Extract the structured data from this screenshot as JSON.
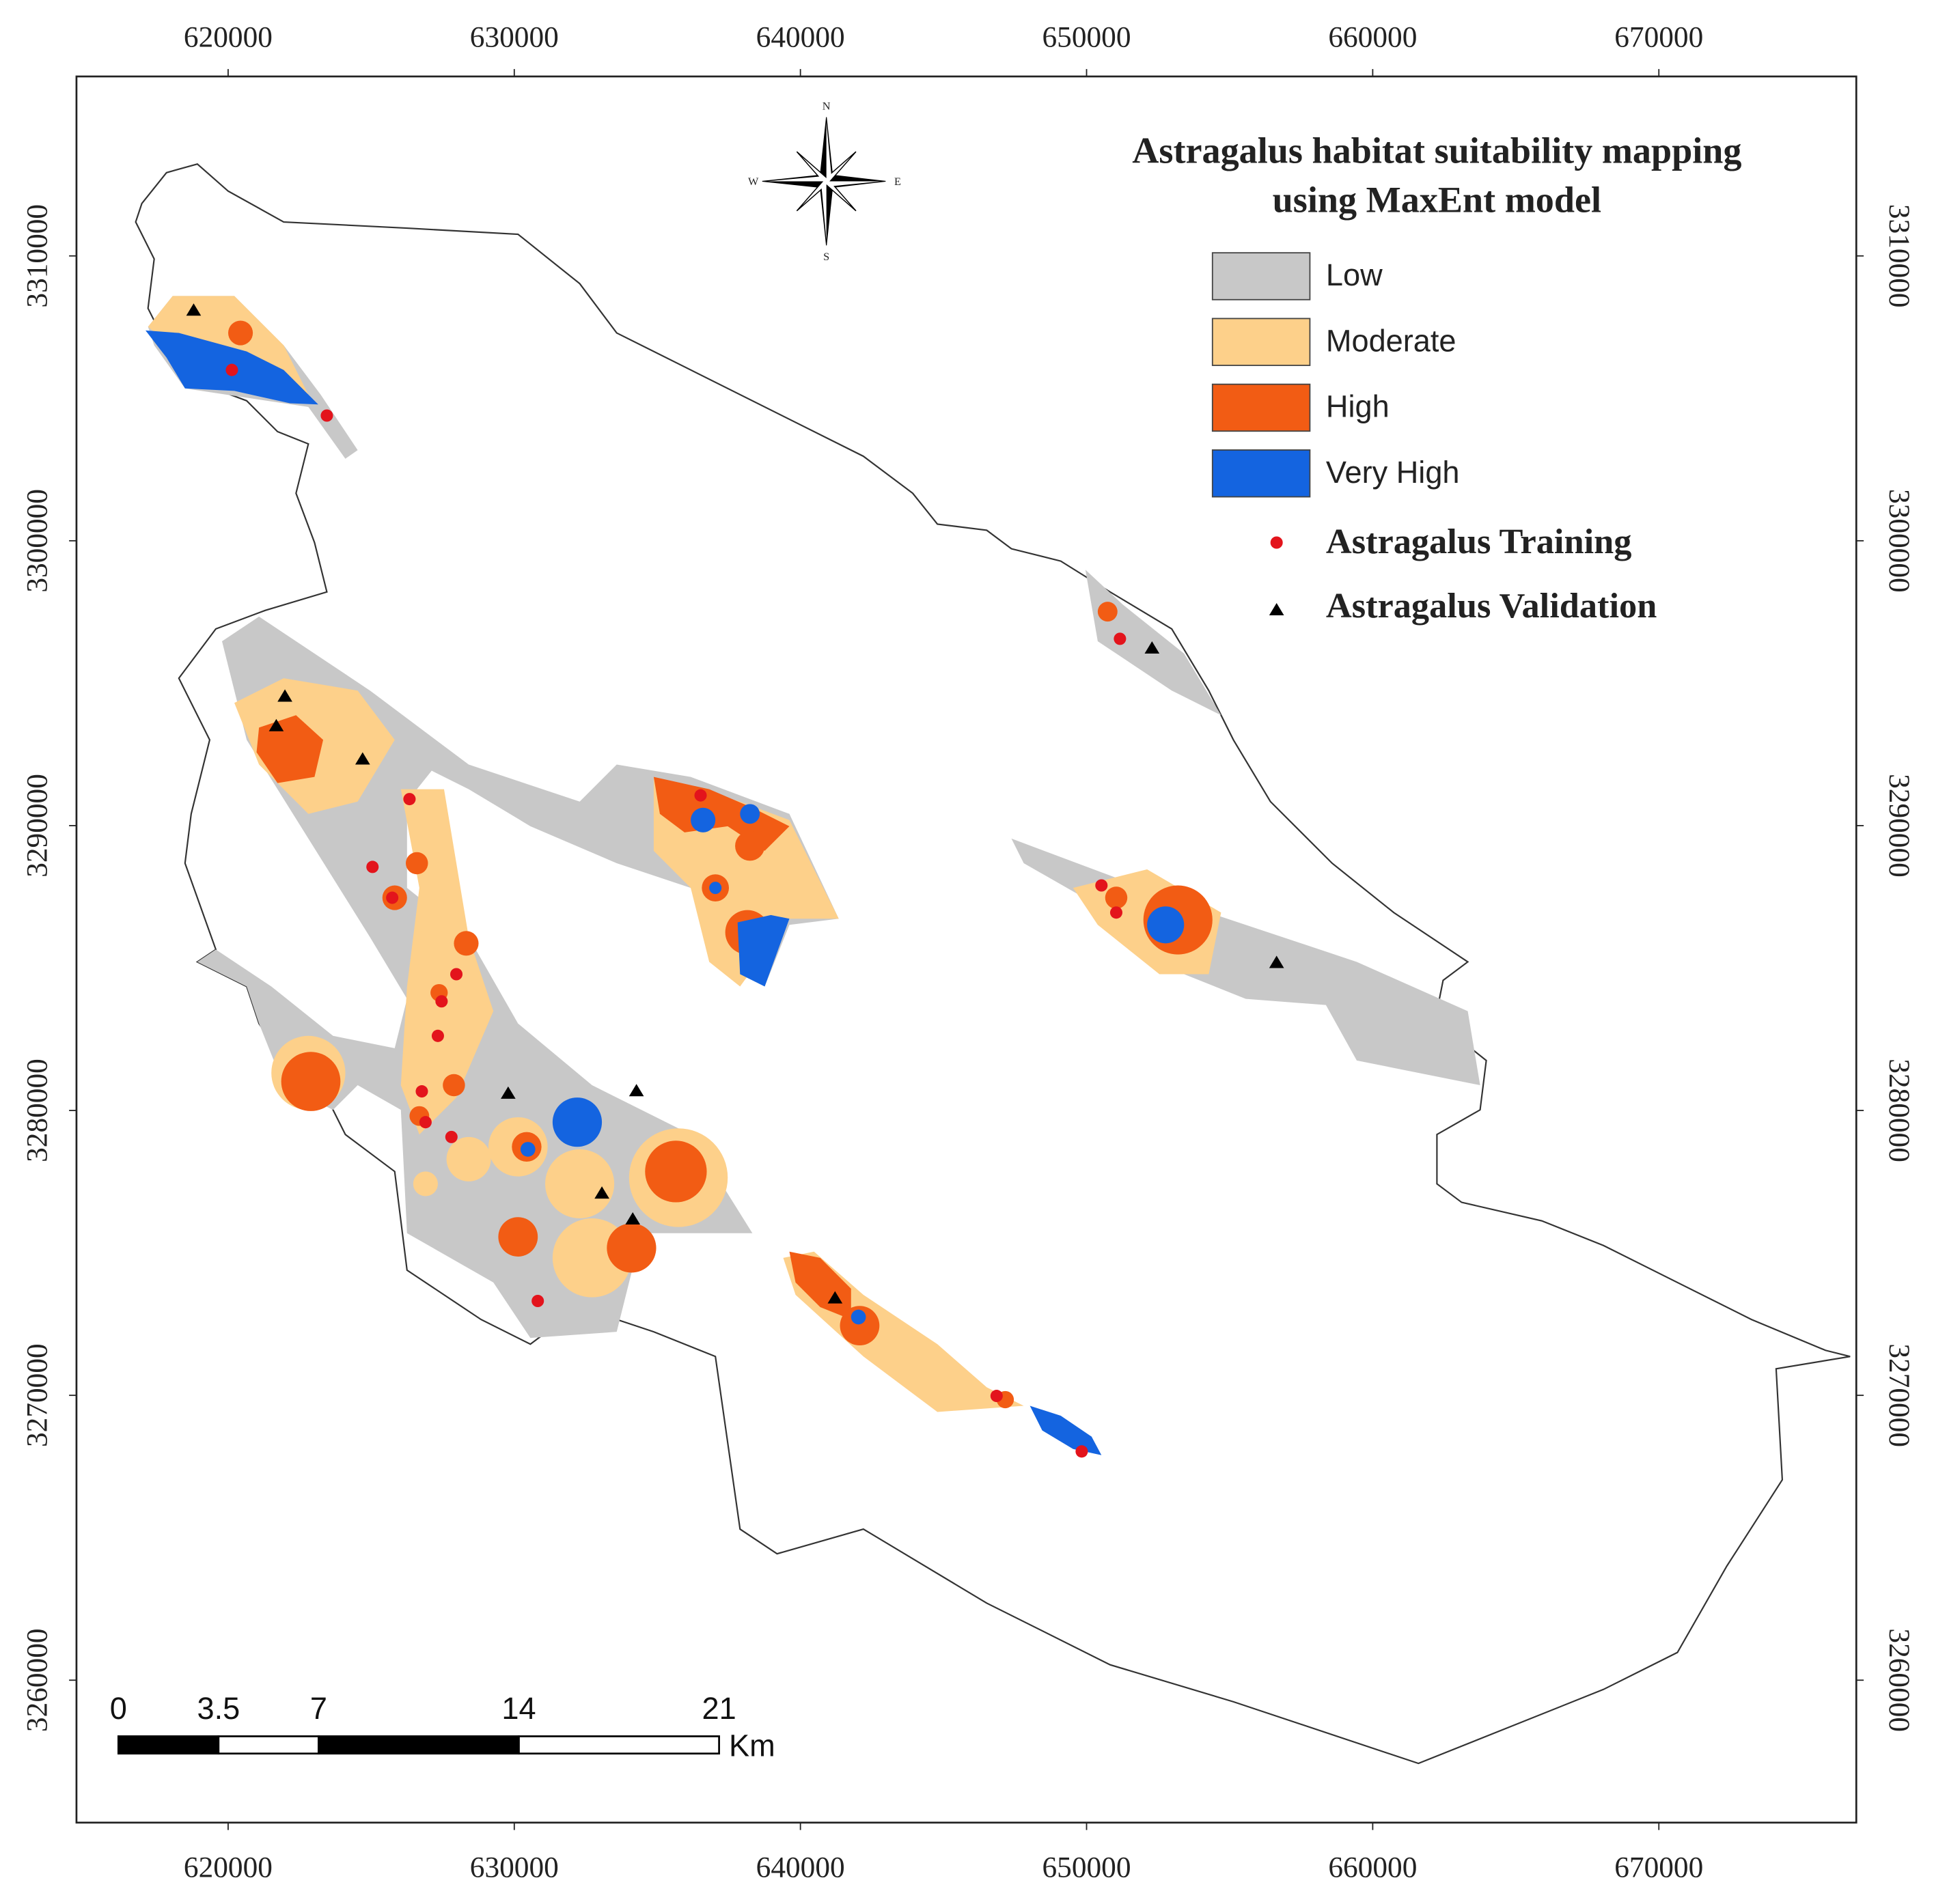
{
  "map": {
    "title": [
      "Astragalus habitat suitability mapping",
      "using MaxEnt model"
    ],
    "legend": [
      {
        "label": "Low",
        "color": "#c8c8c8"
      },
      {
        "label": "Moderate",
        "color": "#fdd08a"
      },
      {
        "label": "High",
        "color": "#f25c14"
      },
      {
        "label": "Very High",
        "color": "#1464e0"
      }
    ],
    "points": [
      {
        "label": "Astragalus Training",
        "color": "#e3141c"
      },
      {
        "label": "Astragalus Validation",
        "color": "#000000"
      }
    ],
    "xlim": [
      614700,
      676900
    ],
    "ylim": [
      3255000,
      3316300
    ],
    "xticks": [
      620000,
      630000,
      640000,
      650000,
      660000,
      670000
    ],
    "yticks": [
      3260000,
      3270000,
      3280000,
      3290000,
      3300000,
      3310000
    ],
    "compass": {
      "n": "N",
      "s": "S",
      "e": "E",
      "w": "W"
    },
    "scale_bar": {
      "ticks": [
        0,
        3.5,
        7,
        14,
        21
      ],
      "unit": "Km"
    }
  }
}
